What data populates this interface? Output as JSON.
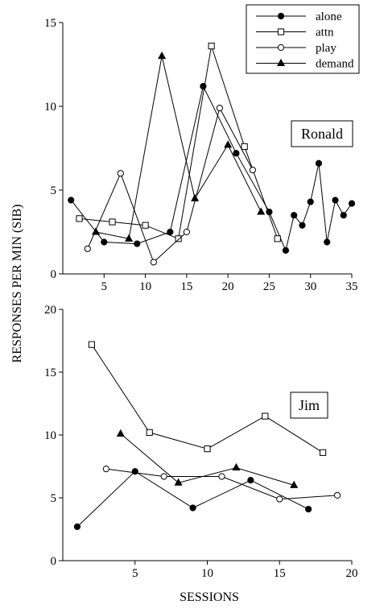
{
  "chart_data": [
    {
      "type": "line",
      "panel_label": "Ronald",
      "xlim": [
        0,
        35
      ],
      "ylim": [
        0,
        15
      ],
      "x_ticks": [
        5,
        10,
        15,
        20,
        25,
        30,
        35
      ],
      "y_ticks": [
        0,
        5,
        10,
        15
      ],
      "legend": {
        "position": "top-right",
        "entries": [
          "alone",
          "attn",
          "play",
          "demand"
        ]
      },
      "series": [
        {
          "name": "alone",
          "marker": "filled-circle",
          "points": [
            [
              1,
              4.4
            ],
            [
              5,
              1.9
            ],
            [
              9,
              1.8
            ],
            [
              13,
              2.5
            ],
            [
              17,
              11.2
            ],
            [
              21,
              7.2
            ],
            [
              25,
              3.7
            ],
            [
              27,
              1.4
            ],
            [
              28,
              3.5
            ],
            [
              29,
              2.9
            ],
            [
              30,
              4.3
            ],
            [
              31,
              6.6
            ],
            [
              32,
              1.9
            ],
            [
              33,
              4.4
            ],
            [
              34,
              3.5
            ],
            [
              35,
              4.2
            ]
          ]
        },
        {
          "name": "attn",
          "marker": "open-square",
          "points": [
            [
              2,
              3.3
            ],
            [
              6,
              3.1
            ],
            [
              10,
              2.9
            ],
            [
              14,
              2.1
            ],
            [
              18,
              13.6
            ],
            [
              22,
              7.6
            ],
            [
              26,
              2.1
            ]
          ]
        },
        {
          "name": "play",
          "marker": "open-circle",
          "points": [
            [
              3,
              1.5
            ],
            [
              7,
              6.0
            ],
            [
              11,
              0.7
            ],
            [
              15,
              2.5
            ],
            [
              19,
              9.9
            ],
            [
              23,
              6.2
            ]
          ]
        },
        {
          "name": "demand",
          "marker": "filled-triangle",
          "points": [
            [
              4,
              2.5
            ],
            [
              8,
              2.1
            ],
            [
              12,
              13.0
            ],
            [
              16,
              4.5
            ],
            [
              20,
              7.7
            ],
            [
              24,
              3.7
            ]
          ]
        }
      ]
    },
    {
      "type": "line",
      "panel_label": "Jim",
      "xlim": [
        0,
        20
      ],
      "ylim": [
        0,
        20
      ],
      "x_ticks": [
        5,
        10,
        15,
        20
      ],
      "y_ticks": [
        0,
        5,
        10,
        15,
        20
      ],
      "series": [
        {
          "name": "alone",
          "marker": "filled-circle",
          "points": [
            [
              1,
              2.7
            ],
            [
              5,
              7.1
            ],
            [
              9,
              4.2
            ],
            [
              13,
              6.4
            ],
            [
              17,
              4.1
            ]
          ]
        },
        {
          "name": "attn",
          "marker": "open-square",
          "points": [
            [
              2,
              17.2
            ],
            [
              6,
              10.2
            ],
            [
              10,
              8.9
            ],
            [
              14,
              11.5
            ],
            [
              18,
              8.6
            ]
          ]
        },
        {
          "name": "play",
          "marker": "open-circle",
          "points": [
            [
              3,
              7.3
            ],
            [
              7,
              6.7
            ],
            [
              11,
              6.7
            ],
            [
              15,
              4.9
            ],
            [
              19,
              5.2
            ]
          ]
        },
        {
          "name": "demand",
          "marker": "filled-triangle",
          "points": [
            [
              4,
              10.1
            ],
            [
              8,
              6.2
            ],
            [
              12,
              7.4
            ],
            [
              16,
              6.0
            ]
          ]
        }
      ]
    }
  ],
  "axes": {
    "ylabel": "RESPONSES PER MIN (SIB)",
    "xlabel": "SESSIONS"
  }
}
